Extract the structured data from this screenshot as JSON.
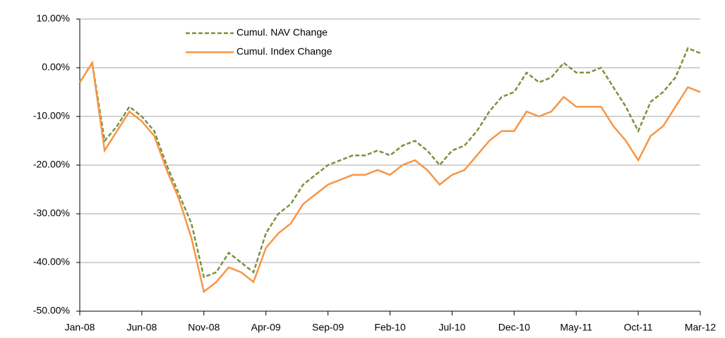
{
  "chart_data": {
    "type": "line",
    "categories": [
      "Jan-08",
      null,
      null,
      null,
      null,
      "Jun-08",
      null,
      null,
      null,
      null,
      "Nov-08",
      null,
      null,
      null,
      null,
      "Apr-09",
      null,
      null,
      null,
      null,
      "Sep-09",
      null,
      null,
      null,
      null,
      "Feb-10",
      null,
      null,
      null,
      null,
      "Jul-10",
      null,
      null,
      null,
      null,
      "Dec-10",
      null,
      null,
      null,
      null,
      "May-11",
      null,
      null,
      null,
      null,
      "Oct-11",
      null,
      null,
      null,
      null,
      "Mar-12"
    ],
    "series": [
      {
        "name": "Cumul. NAV Change",
        "color": "#77933c",
        "dash": true,
        "values": [
          -3,
          1,
          -15,
          -12,
          -8,
          -10,
          -13,
          -20,
          -26,
          -32,
          -43,
          -42,
          -38,
          -40,
          -42,
          -34,
          -30,
          -28,
          -24,
          -22,
          -20,
          -19,
          -18,
          -18,
          -17,
          -18,
          -16,
          -15,
          -17,
          -20,
          -17,
          -16,
          -13,
          -9,
          -6,
          -5,
          -1,
          -3,
          -2,
          1,
          -1,
          -1,
          0,
          -4,
          -8,
          -13,
          -7,
          -5,
          -2,
          4,
          3
        ]
      },
      {
        "name": "Cumul. Index Change",
        "color": "#f79646",
        "dash": false,
        "values": [
          -3,
          1,
          -17,
          -13,
          -9,
          -11,
          -14,
          -21,
          -27,
          -35,
          -46,
          -44,
          -41,
          -42,
          -44,
          -37,
          -34,
          -32,
          -28,
          -26,
          -24,
          -23,
          -22,
          -22,
          -21,
          -22,
          -20,
          -19,
          -21,
          -24,
          -22,
          -21,
          -18,
          -15,
          -13,
          -13,
          -9,
          -10,
          -9,
          -6,
          -8,
          -8,
          -8,
          -12,
          -15,
          -19,
          -14,
          -12,
          -8,
          -4,
          -5
        ]
      }
    ],
    "ylim": [
      -50,
      10
    ],
    "yticks": [
      {
        "value": -50,
        "label": "-50.00%"
      },
      {
        "value": -40,
        "label": "-40.00%"
      },
      {
        "value": -30,
        "label": "-30.00%"
      },
      {
        "value": -20,
        "label": "-20.00%"
      },
      {
        "value": -10,
        "label": "-10.00%"
      },
      {
        "value": 0,
        "label": "0.00%"
      },
      {
        "value": 10,
        "label": "10.00%"
      }
    ],
    "grid": true,
    "legend": "upper left"
  }
}
